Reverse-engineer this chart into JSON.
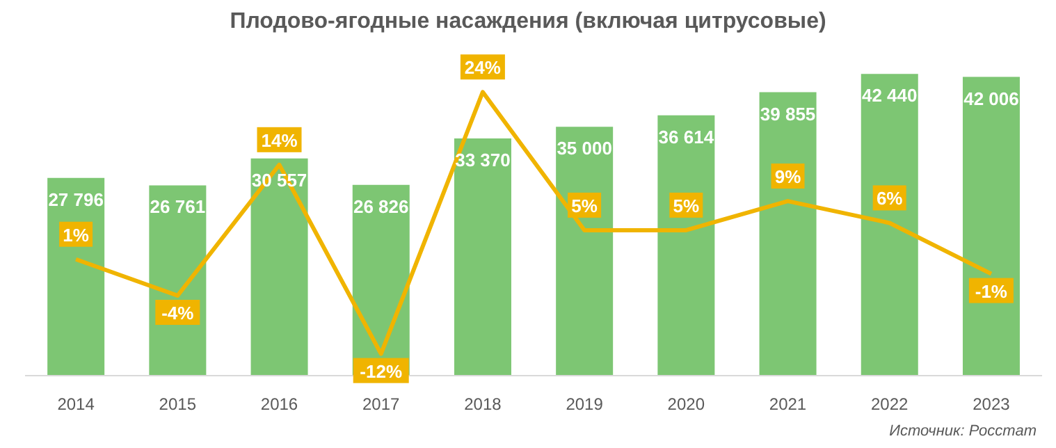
{
  "chart_data": {
    "type": "bar",
    "title": "Плодово-ягодные насаждения  (включая цитрусовые)",
    "categories": [
      "2014",
      "2015",
      "2016",
      "2017",
      "2018",
      "2019",
      "2020",
      "2021",
      "2022",
      "2023"
    ],
    "series": [
      {
        "color": "#7dc673",
        "values": [
          27796,
          26761,
          30557,
          26826,
          33370,
          35000,
          36614,
          39855,
          42440,
          42006
        ],
        "value_labels": [
          "27 796",
          "26 761",
          "30 557",
          "26 826",
          "33 370",
          "35 000",
          "36 614",
          "39 855",
          "42 440",
          "42 006"
        ]
      },
      {
        "type": "line",
        "axis": "y2",
        "color": "#f0b400",
        "values": [
          1,
          -4,
          14,
          -12,
          24,
          5,
          5,
          9,
          6,
          -1
        ],
        "value_labels": [
          "1%",
          "-4%",
          "14%",
          "-12%",
          "24%",
          "5%",
          "5%",
          "9%",
          "6%",
          "-1%"
        ]
      }
    ],
    "ylim": [
      0,
      45000
    ],
    "y2lim": [
      -15,
      29
    ],
    "tick_labels": "x",
    "grid": false,
    "legend": false,
    "marker": "none",
    "annotations": [
      "Источник: Росстат"
    ]
  }
}
